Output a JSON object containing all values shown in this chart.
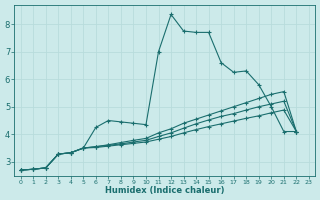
{
  "xlabel": "Humidex (Indice chaleur)",
  "bg_color": "#cceaea",
  "grid_color": "#aadddd",
  "line_color": "#1a6e6e",
  "xlim": [
    -0.5,
    23.5
  ],
  "ylim": [
    2.5,
    8.7
  ],
  "xtick_labels": [
    "0",
    "1",
    "2",
    "3",
    "4",
    "5",
    "6",
    "7",
    "8",
    "9",
    "10",
    "11",
    "12",
    "13",
    "14",
    "15",
    "16",
    "17",
    "18",
    "19",
    "20",
    "21",
    "22",
    "23"
  ],
  "ytick_labels": [
    "3",
    "4",
    "5",
    "6",
    "7",
    "8"
  ],
  "ytick_vals": [
    3,
    4,
    5,
    6,
    7,
    8
  ],
  "series": [
    {
      "x": [
        0,
        1,
        2,
        3,
        4,
        5,
        6,
        7,
        8,
        9,
        10,
        11,
        12,
        13,
        14,
        15,
        16,
        17,
        18,
        19,
        20,
        21,
        22
      ],
      "y": [
        2.7,
        2.73,
        2.78,
        3.28,
        3.33,
        3.5,
        4.25,
        4.5,
        4.45,
        4.4,
        4.35,
        7.0,
        8.35,
        7.75,
        7.7,
        7.7,
        6.6,
        6.25,
        6.3,
        5.8,
        5.0,
        4.1,
        4.1
      ]
    },
    {
      "x": [
        0,
        1,
        2,
        3,
        4,
        5,
        6,
        7,
        8,
        9,
        10,
        11,
        12,
        13,
        14,
        15,
        16,
        17,
        18,
        19,
        20,
        21,
        22
      ],
      "y": [
        2.7,
        2.73,
        2.78,
        3.28,
        3.33,
        3.5,
        3.55,
        3.62,
        3.7,
        3.78,
        3.85,
        4.05,
        4.2,
        4.4,
        4.55,
        4.7,
        4.85,
        5.0,
        5.15,
        5.3,
        5.45,
        5.55,
        4.1
      ]
    },
    {
      "x": [
        0,
        1,
        2,
        3,
        4,
        5,
        6,
        7,
        8,
        9,
        10,
        11,
        12,
        13,
        14,
        15,
        16,
        17,
        18,
        19,
        20,
        21,
        22
      ],
      "y": [
        2.7,
        2.73,
        2.78,
        3.28,
        3.33,
        3.5,
        3.55,
        3.6,
        3.65,
        3.72,
        3.78,
        3.92,
        4.05,
        4.22,
        4.38,
        4.52,
        4.65,
        4.75,
        4.88,
        5.0,
        5.1,
        5.2,
        4.1
      ]
    },
    {
      "x": [
        0,
        1,
        2,
        3,
        4,
        5,
        6,
        7,
        8,
        9,
        10,
        11,
        12,
        13,
        14,
        15,
        16,
        17,
        18,
        19,
        20,
        21,
        22
      ],
      "y": [
        2.7,
        2.73,
        2.78,
        3.28,
        3.33,
        3.5,
        3.52,
        3.57,
        3.62,
        3.67,
        3.72,
        3.82,
        3.92,
        4.05,
        4.17,
        4.28,
        4.38,
        4.48,
        4.58,
        4.67,
        4.78,
        4.88,
        4.1
      ]
    }
  ]
}
